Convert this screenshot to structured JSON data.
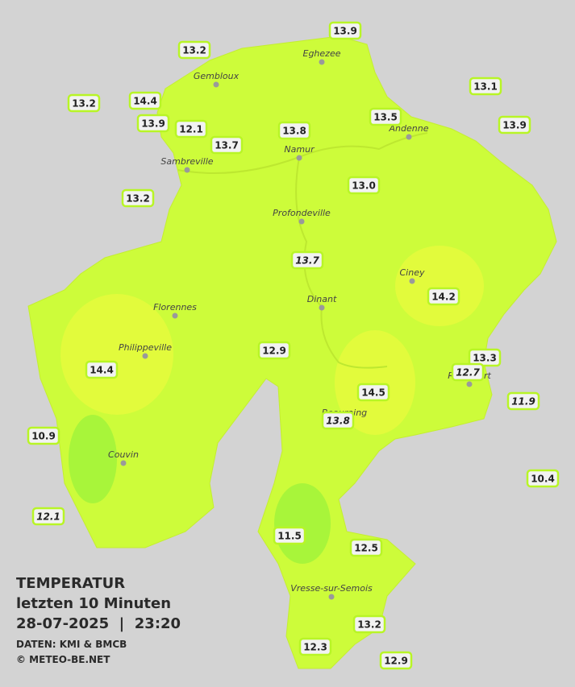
{
  "title": {
    "lines": [
      "TEMPERATUR",
      "letzten 10 Minuten",
      "28-07-2025  |  23:20"
    ]
  },
  "credits": [
    "DATEN: KMI & BMCB",
    "© METEO-BE.NET"
  ],
  "cities": [
    "Eghezee",
    "Gembloux",
    "Andenne",
    "Namur",
    "Sambreville",
    "Profondeville",
    "Ciney",
    "Dinant",
    "Florennes",
    "Philippeville",
    "Couvin",
    "Vresse-sur-Semois",
    "Beauraing",
    "Rochefort"
  ],
  "readings": [
    "13.9",
    "13.2",
    "13.2",
    "14.4",
    "13.1",
    "13.9",
    "12.1",
    "13.5",
    "13.8",
    "13.9",
    "13.7",
    "13.0",
    "13.2",
    "14.2",
    "12.9",
    "13.3",
    "14.4",
    "14.5",
    "10.9",
    "10.4",
    "11.5",
    "12.5",
    "13.2",
    "12.3",
    "12.9"
  ],
  "readings_italic": [
    "13.7",
    "12.7",
    "11.9",
    "13.8",
    "12.1"
  ]
}
